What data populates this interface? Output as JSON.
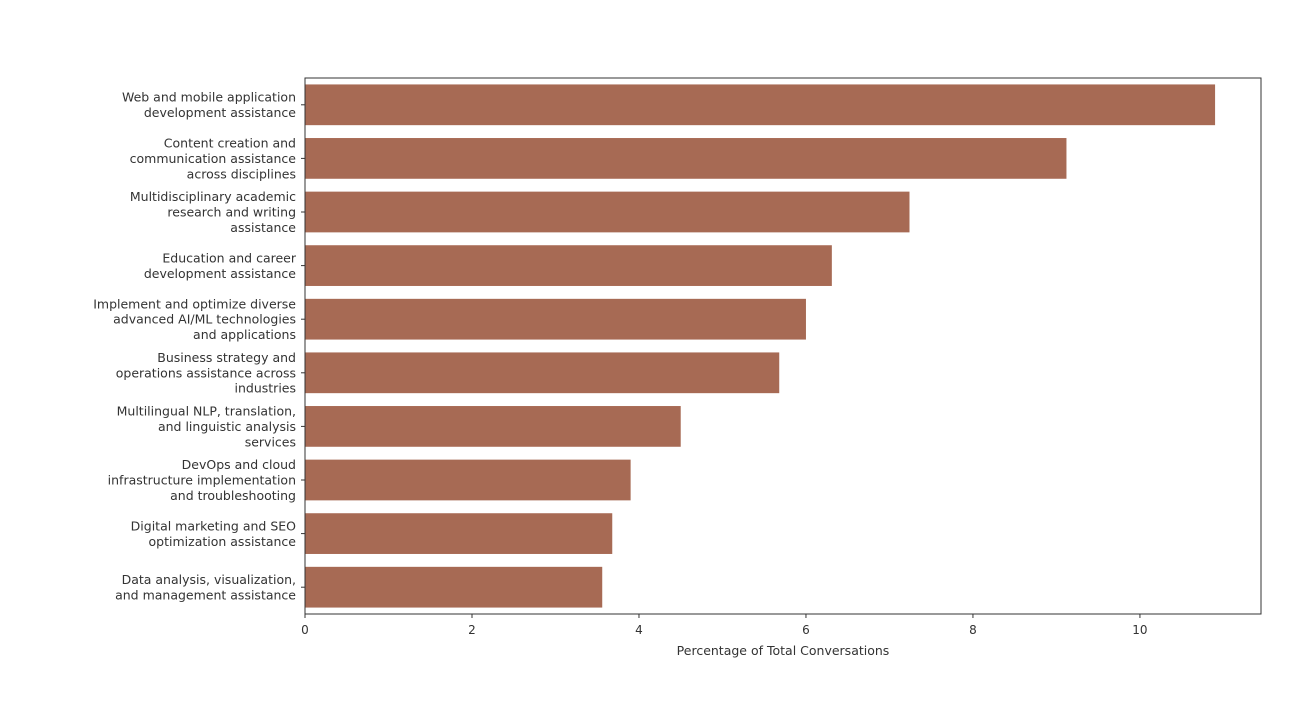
{
  "chart_data": {
    "type": "bar",
    "orientation": "horizontal",
    "title": "",
    "xlabel": "Percentage of Total Conversations",
    "ylabel": "",
    "categories": [
      "Web and mobile application\ndevelopment assistance",
      "Content creation and\ncommunication assistance\nacross disciplines",
      "Multidisciplinary academic\nresearch and writing\nassistance",
      "Education and career\ndevelopment assistance",
      "Implement and optimize diverse\nadvanced AI/ML technologies\nand applications",
      "Business strategy and\noperations assistance across\nindustries",
      "Multilingual NLP, translation,\nand linguistic analysis\nservices",
      "DevOps and cloud\ninfrastructure implementation\nand troubleshooting",
      "Digital marketing and SEO\noptimization assistance",
      "Data analysis, visualization,\nand management assistance"
    ],
    "values": [
      10.9,
      9.12,
      7.24,
      6.31,
      6.0,
      5.68,
      4.5,
      3.9,
      3.68,
      3.56
    ],
    "xlim": [
      0,
      11.45
    ],
    "xticks": [
      "0",
      "2",
      "4",
      "6",
      "8",
      "10"
    ],
    "grid": false,
    "bar_color": "#a76a54"
  }
}
